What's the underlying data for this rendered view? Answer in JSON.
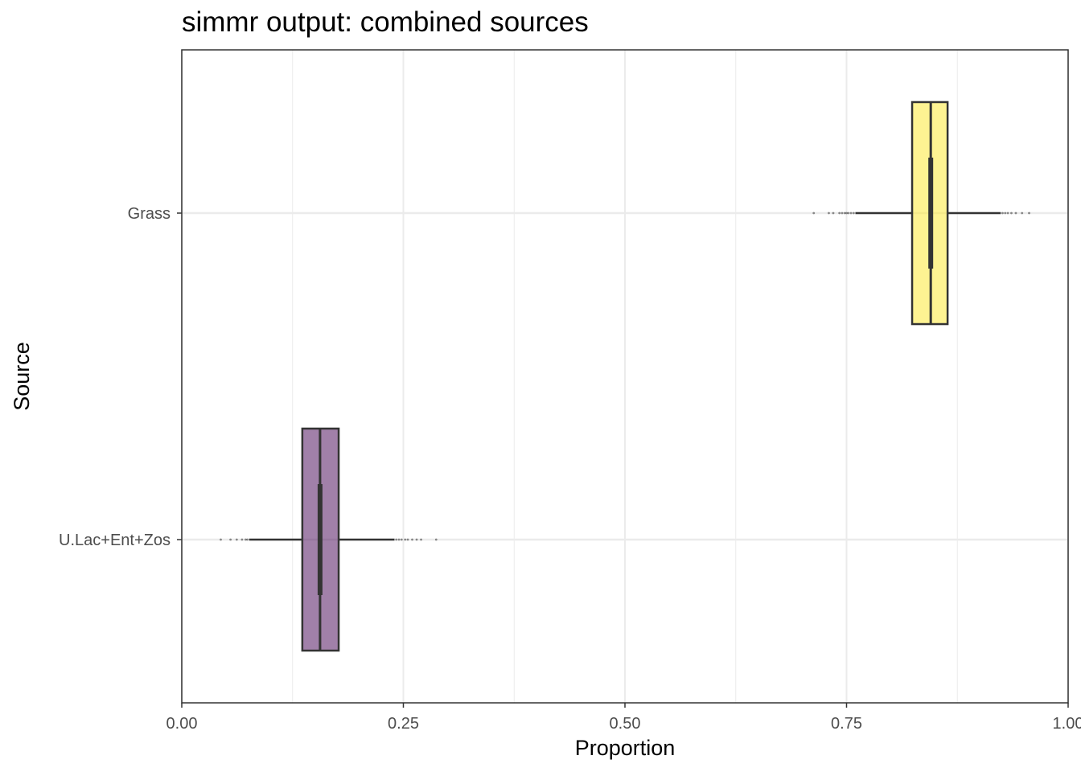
{
  "chart_data": {
    "type": "boxplot",
    "title": "simmr output: combined sources",
    "xlabel": "Proportion",
    "ylabel": "Source",
    "xlim": [
      0,
      1
    ],
    "xticks": [
      0,
      0.25,
      0.5,
      0.75,
      1
    ],
    "xtick_labels": [
      "0.00",
      "0.25",
      "0.50",
      "0.75",
      "1.00"
    ],
    "grid": true,
    "legend": "none",
    "categories": [
      "Grass",
      "U.Lac+Ent+Zos"
    ],
    "series": [
      {
        "category": "Grass",
        "color": "#fde725",
        "min": 0.76,
        "q1": 0.824,
        "median": 0.845,
        "q3": 0.864,
        "max": 0.924,
        "outliers": [
          0.713,
          0.73,
          0.735,
          0.742,
          0.745,
          0.748,
          0.75,
          0.752,
          0.755,
          0.758,
          0.926,
          0.929,
          0.932,
          0.936,
          0.941,
          0.948,
          0.956
        ]
      },
      {
        "category": "U.Lac+Ent+Zos",
        "color": "#440154",
        "min": 0.076,
        "q1": 0.136,
        "median": 0.156,
        "q3": 0.177,
        "max": 0.24,
        "outliers": [
          0.044,
          0.055,
          0.062,
          0.068,
          0.072,
          0.074,
          0.242,
          0.245,
          0.248,
          0.252,
          0.255,
          0.26,
          0.265,
          0.27,
          0.287
        ]
      }
    ]
  }
}
